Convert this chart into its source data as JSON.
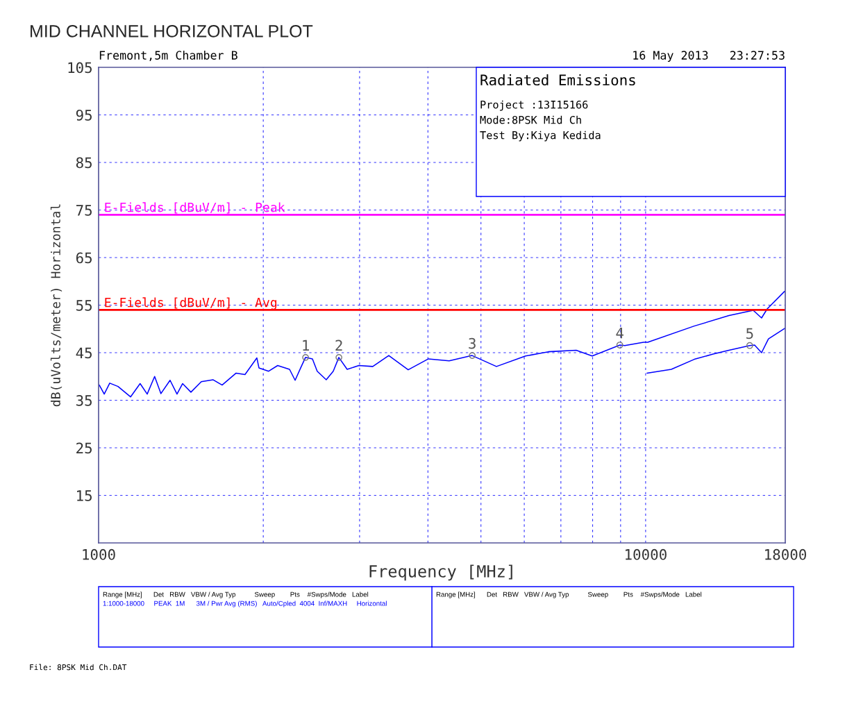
{
  "chart_data": {
    "type": "line",
    "title": "MID CHANNEL HORIZONTAL PLOT",
    "xlabel": "Frequency [MHz]",
    "ylabel": "dB(uVolts/meter) Horizontal",
    "log": "x",
    "grid": true,
    "legend": false,
    "marker": "none",
    "line_style": "solid",
    "xlim": [
      1000,
      18000
    ],
    "xticks": [
      1000,
      {
        "value": 2000,
        "label": null
      },
      {
        "value": 3000,
        "label": null
      },
      {
        "value": 4000,
        "label": null
      },
      {
        "value": 5000,
        "label": null
      },
      {
        "value": 6000,
        "label": null
      },
      {
        "value": 7000,
        "label": null
      },
      {
        "value": 8000,
        "label": null
      },
      {
        "value": 9000,
        "label": null
      },
      10000,
      18000
    ],
    "ylim": [
      5,
      105
    ],
    "yticks": [
      15,
      25,
      35,
      45,
      55,
      65,
      75,
      85,
      95,
      105
    ],
    "series": [
      {
        "color": "#0000ff",
        "x": [
          1003,
          1024,
          1048,
          1085,
          1144,
          1191,
          1227,
          1266,
          1300,
          1351,
          1391,
          1424,
          1475,
          1541,
          1620,
          1682,
          1784,
          1852,
          1947,
          1964,
          2046,
          2125,
          2234,
          2287,
          2341,
          2389,
          2460,
          2510,
          2607,
          2685,
          2749,
          2847,
          2991,
          3171,
          3392,
          3681,
          4008,
          4374,
          4817,
          5337,
          6033,
          6643,
          7467,
          7986,
          8974,
          9160,
          9913,
          10088,
          12270,
          14200,
          15730,
          16290,
          16680,
          17950
        ],
        "values": [
          38.2,
          36.3,
          38.6,
          37.9,
          35.7,
          38.5,
          36.3,
          40,
          36.4,
          39.2,
          36.3,
          38.5,
          36.7,
          38.9,
          39.3,
          38.2,
          40.7,
          40.4,
          43.9,
          41.8,
          41.1,
          42.3,
          41.5,
          39.2,
          41.8,
          44,
          43.7,
          41.1,
          39.3,
          41.1,
          44,
          41.5,
          42.3,
          42.1,
          44.4,
          41.4,
          43.7,
          43.3,
          44.4,
          42.1,
          44.3,
          45.2,
          45.5,
          44.3,
          46.6,
          46.5,
          47.2,
          47.2,
          50.6,
          52.8,
          53.9,
          52.3,
          54.2,
          57.9
        ]
      },
      {
        "color": "#0000ff",
        "x": [
          10060,
          11140,
          12270,
          13280,
          14200,
          15500,
          15820,
          16290,
          16770,
          17950
        ],
        "values": [
          40.7,
          41.5,
          43.6,
          44.7,
          45.5,
          46.5,
          46.6,
          45,
          47.9,
          50.1
        ]
      }
    ],
    "ref_lines": [
      {
        "axis": "y",
        "value": 74,
        "label": "E-Fields [dBuV/m] - Peak",
        "color": "#ff00ff"
      },
      {
        "axis": "y",
        "value": 54,
        "label": "E-Fields [dBuV/m] - Avg",
        "color": "#ff0000"
      }
    ],
    "annotations": [
      {
        "text": "1",
        "x": 2390,
        "y": 44
      },
      {
        "text": "2",
        "x": 2750,
        "y": 44
      },
      {
        "text": "3",
        "x": 4820,
        "y": 44.4
      },
      {
        "text": "4",
        "x": 8970,
        "y": 46.6
      },
      {
        "text": "5",
        "x": 15500,
        "y": 46.5
      },
      "Fremont,5m Chamber B",
      "16 May 2013   23:27:53",
      "Radiated Emissions",
      "Project :13I15166",
      "Mode:8PSK Mid Ch",
      "Test By:Kiya Kedida",
      "Range [MHz]      Det   RBW   VBW / Avg Typ          Sweep        Pts    #Swps/Mode   Label",
      "1:1000-18000     PEAK  1M      3M / Pwr Avg (RMS)   Auto/Cpled  4004  Inf/MAXH     Horizontal",
      "Range [MHz]      Det   RBW   VBW / Avg Typ          Sweep        Pts    #Swps/Mode   Label",
      "File: 8PSK Mid Ch.DAT"
    ]
  }
}
